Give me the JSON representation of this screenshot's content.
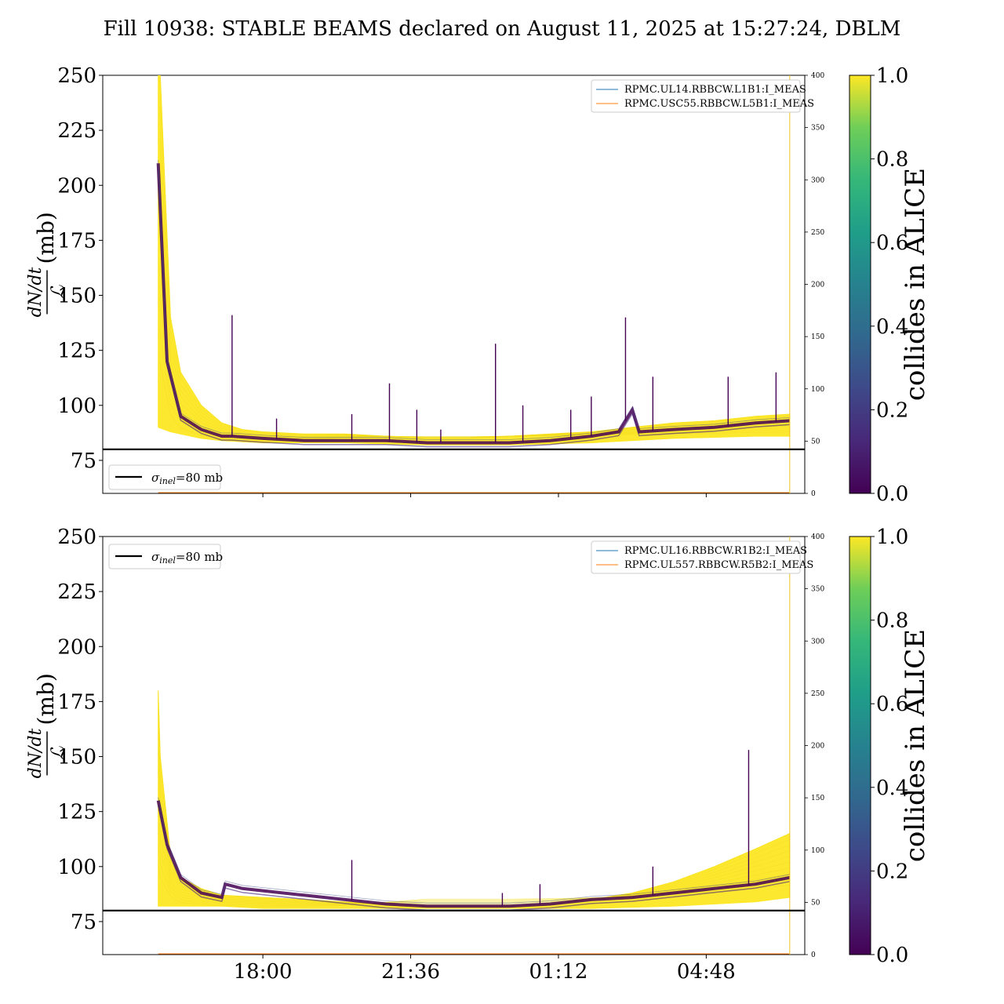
{
  "title": "Fill 10938: STABLE BEAMS declared on August 11, 2025 at 15:27:24, DBLM",
  "colors": {
    "collide_high": "#fde725",
    "collide_low": "#440154",
    "sigma_line": "#000000",
    "bwd_blue": "#1f77b4",
    "bwd_orange": "#ff7f0e"
  },
  "colorbar": {
    "label": "collides in ALICE",
    "ticks": [
      "0.0",
      "0.2",
      "0.4",
      "0.6",
      "0.8",
      "1.0"
    ]
  },
  "ylabel": {
    "numerator": "dN/dt",
    "denominator": "ℒ",
    "unit": "(mb)"
  },
  "x_ticks": [
    "18:00",
    "21:36",
    "01:12",
    "04:48"
  ],
  "chart_data": [
    {
      "type": "line",
      "panel": "top",
      "xlabel": "",
      "ylim": [
        60,
        250
      ],
      "yticks": [
        75,
        100,
        125,
        150,
        175,
        200,
        225,
        250
      ],
      "y2lim": [
        0,
        400
      ],
      "y2ticks": [
        0,
        50,
        100,
        150,
        200,
        250,
        300,
        350,
        400
      ],
      "x_tick_labels": [
        "18:00",
        "21:36",
        "01:12",
        "04:48"
      ],
      "x_range_hours": [
        14.1,
        7.2
      ],
      "hline": {
        "y": 80,
        "label": "σinel=80 mb",
        "legend_label": "=80 mb"
      },
      "secondary_series": [
        {
          "name": "RPMC.UL14.RBBCW.L1B1:I_MEAS",
          "color": "#1f77b4"
        },
        {
          "name": "RPMC.USC55.RBBCW.L5B1:I_MEAS",
          "color": "#ff7f0e"
        }
      ],
      "series": [
        {
          "name": "colliding (1.0) upper envelope",
          "x": [
            "15:27",
            "15:30",
            "15:45",
            "16:00",
            "16:30",
            "17:00",
            "17:30",
            "18:00",
            "19:00",
            "20:00",
            "21:00",
            "22:00",
            "23:00",
            "00:00",
            "01:00",
            "02:00",
            "03:00",
            "04:00",
            "05:00",
            "06:00",
            "06:50"
          ],
          "values": [
            250,
            250,
            140,
            115,
            100,
            92,
            89,
            88,
            87,
            87,
            86,
            85,
            85,
            86,
            87,
            88,
            90,
            92,
            93,
            95,
            96
          ]
        },
        {
          "name": "colliding (1.0) lower envelope",
          "x": [
            "15:27",
            "15:45",
            "16:30",
            "17:00",
            "18:00",
            "20:00",
            "22:00",
            "00:00",
            "02:00",
            "04:00",
            "06:00",
            "06:50"
          ],
          "values": [
            90,
            88,
            85,
            84,
            83,
            83,
            82,
            82,
            83,
            85,
            86,
            86
          ]
        },
        {
          "name": "non-colliding (0.0) band",
          "x": [
            "15:27",
            "15:40",
            "16:00",
            "16:30",
            "17:00",
            "17:15",
            "18:00",
            "19:00",
            "20:00",
            "21:00",
            "22:00",
            "23:00",
            "00:00",
            "01:00",
            "02:00",
            "02:40",
            "03:00",
            "03:10",
            "04:00",
            "05:00",
            "06:00",
            "06:50"
          ],
          "values": [
            210,
            120,
            95,
            89,
            86,
            86,
            85,
            84,
            84,
            84,
            83,
            83,
            83,
            84,
            86,
            88,
            98,
            88,
            89,
            90,
            92,
            93
          ]
        },
        {
          "name": "spikes",
          "x": [
            "17:15",
            "18:20",
            "20:10",
            "21:05",
            "21:45",
            "22:20",
            "23:40",
            "00:20",
            "01:30",
            "02:00",
            "02:50",
            "03:30",
            "05:20",
            "06:30"
          ],
          "values": [
            141,
            94,
            96,
            110,
            98,
            89,
            128,
            100,
            98,
            104,
            140,
            113,
            113,
            115
          ]
        }
      ]
    },
    {
      "type": "line",
      "panel": "bottom",
      "xlabel": "",
      "ylim": [
        60,
        250
      ],
      "yticks": [
        75,
        100,
        125,
        150,
        175,
        200,
        225,
        250
      ],
      "y2lim": [
        0,
        400
      ],
      "y2ticks": [
        0,
        50,
        100,
        150,
        200,
        250,
        300,
        350,
        400
      ],
      "x_tick_labels": [
        "18:00",
        "21:36",
        "01:12",
        "04:48"
      ],
      "x_range_hours": [
        14.1,
        7.2
      ],
      "hline": {
        "y": 80,
        "label": "σinel=80 mb",
        "legend_label": "=80 mb"
      },
      "secondary_series": [
        {
          "name": "RPMC.UL16.RBBCW.R1B2:I_MEAS",
          "color": "#1f77b4"
        },
        {
          "name": "RPMC.UL557.RBBCW.R5B2:I_MEAS",
          "color": "#ff7f0e"
        }
      ],
      "series": [
        {
          "name": "colliding (1.0) upper envelope",
          "x": [
            "15:27",
            "15:30",
            "15:45",
            "16:00",
            "16:30",
            "17:00",
            "18:00",
            "19:00",
            "20:00",
            "21:00",
            "22:00",
            "23:00",
            "00:00",
            "01:00",
            "02:00",
            "03:00",
            "04:00",
            "05:00",
            "06:00",
            "06:50"
          ],
          "values": [
            180,
            150,
            105,
            95,
            90,
            87,
            86,
            85,
            84,
            83,
            82,
            82,
            82,
            83,
            85,
            88,
            93,
            100,
            108,
            115
          ]
        },
        {
          "name": "colliding (1.0) lower envelope",
          "x": [
            "15:27",
            "16:00",
            "17:00",
            "18:00",
            "20:00",
            "22:00",
            "00:00",
            "02:00",
            "04:00",
            "06:00",
            "06:50"
          ],
          "values": [
            82,
            82,
            82,
            81,
            81,
            81,
            81,
            81,
            82,
            84,
            86
          ]
        },
        {
          "name": "non-colliding (0.0) band",
          "x": [
            "15:27",
            "15:40",
            "16:00",
            "16:30",
            "17:00",
            "17:05",
            "17:30",
            "18:00",
            "19:00",
            "20:00",
            "21:00",
            "22:00",
            "23:00",
            "00:00",
            "01:00",
            "02:00",
            "03:00",
            "04:00",
            "05:00",
            "06:00",
            "06:50"
          ],
          "values": [
            130,
            110,
            95,
            88,
            86,
            92,
            90,
            89,
            87,
            85,
            83,
            82,
            82,
            82,
            83,
            85,
            86,
            88,
            90,
            92,
            95
          ]
        },
        {
          "name": "spikes",
          "x": [
            "20:10",
            "23:50",
            "00:45",
            "03:30",
            "05:50"
          ],
          "values": [
            103,
            88,
            92,
            100,
            153
          ]
        }
      ]
    }
  ]
}
